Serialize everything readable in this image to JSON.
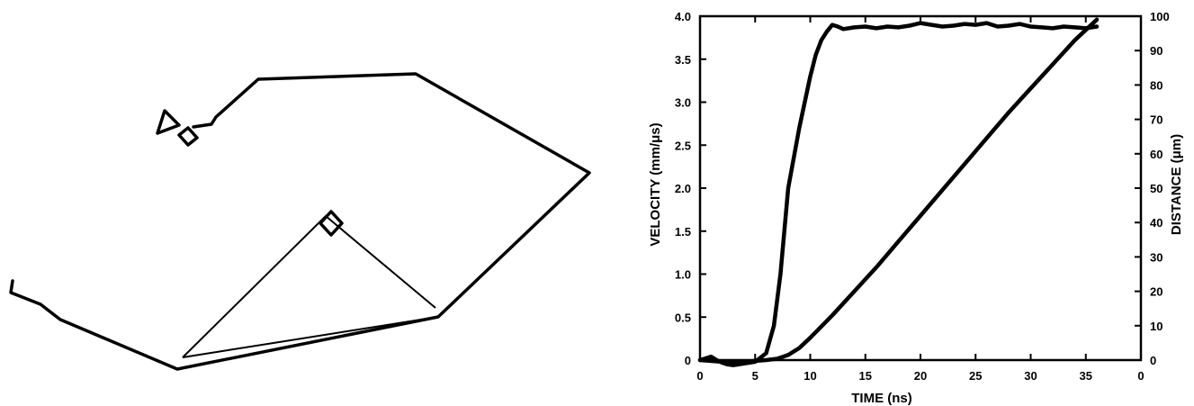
{
  "chart_data": {
    "type": "line",
    "xlabel": "TIME (ns)",
    "ylabel": "VELOCITY (mm/μs)",
    "y2label": "DISTANCE (μm)",
    "xlim": [
      0,
      40
    ],
    "ylim": [
      0,
      4.0
    ],
    "y2lim": [
      0,
      100
    ],
    "xticks": [
      "0",
      "5",
      "10",
      "15",
      "20",
      "25",
      "30",
      "35",
      "0"
    ],
    "yticks": [
      "0",
      "0.5",
      "1.0",
      "1.5",
      "2.0",
      "2.5",
      "3.0",
      "3.5",
      "4.0"
    ],
    "y2ticks": [
      "0",
      "10",
      "20",
      "30",
      "40",
      "50",
      "60",
      "70",
      "80",
      "90",
      "100"
    ],
    "grid": false,
    "series": [
      {
        "axis": "left",
        "x": [
          0,
          0.5,
          1,
          1.5,
          2,
          2.5,
          3,
          3.5,
          4,
          5,
          6,
          6.7,
          7.3,
          8,
          9,
          10,
          10.5,
          11,
          11.5,
          12,
          12.5,
          13,
          14,
          15,
          16,
          17,
          18,
          19,
          20,
          21,
          22,
          23,
          24,
          25,
          26,
          27,
          28,
          29,
          30,
          31,
          32,
          33,
          34,
          35,
          36
        ],
        "values": [
          0.0,
          0.02,
          0.04,
          0.0,
          -0.03,
          -0.05,
          -0.06,
          -0.05,
          -0.04,
          -0.02,
          0.08,
          0.4,
          1.0,
          2.0,
          2.7,
          3.3,
          3.55,
          3.72,
          3.82,
          3.9,
          3.88,
          3.85,
          3.87,
          3.88,
          3.86,
          3.88,
          3.87,
          3.89,
          3.92,
          3.9,
          3.88,
          3.89,
          3.91,
          3.9,
          3.92,
          3.88,
          3.89,
          3.91,
          3.88,
          3.87,
          3.86,
          3.88,
          3.87,
          3.86,
          3.88
        ]
      },
      {
        "axis": "right",
        "x": [
          0,
          2,
          4,
          6,
          7,
          8,
          9,
          10,
          12,
          14,
          16,
          18,
          20,
          22,
          24,
          26,
          28,
          30,
          32,
          34,
          36
        ],
        "values": [
          0,
          -0.5,
          -0.5,
          0,
          0.4,
          1.5,
          3.5,
          6.5,
          13,
          20,
          27,
          34.5,
          42,
          49.5,
          57,
          64.5,
          72,
          79,
          86,
          93,
          99
        ]
      }
    ]
  }
}
